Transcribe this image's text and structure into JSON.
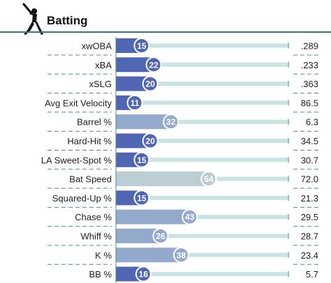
{
  "header": {
    "title": "Batting",
    "icon": "batter-silhouette-icon"
  },
  "colors": {
    "accent": "#2f7a84",
    "track": "#c9e3e3",
    "track_edge": "#8fc1c3",
    "gridline": "#3f8f99",
    "percentile_bar_low": "#5066b2",
    "percentile_bar_mid": "#93aacd",
    "percentile_bar_near_avg": "#b9cdd2",
    "badge_stroke": "#ffffff"
  },
  "chart_data": {
    "type": "bar",
    "orientation": "horizontal",
    "title": "Batting",
    "value_axis": {
      "label": "",
      "range": [
        0,
        100
      ],
      "unit": "percentile"
    },
    "categories": [
      "xwOBA",
      "xBA",
      "xSLG",
      "Avg Exit Velocity",
      "Barrel %",
      "Hard-Hit %",
      "LA Sweet-Spot %",
      "Bat Speed",
      "Squared-Up %",
      "Chase %",
      "Whiff %",
      "K %",
      "BB %"
    ],
    "rows": [
      {
        "label": "xwOBA",
        "percentile": 15,
        "stat": ".289"
      },
      {
        "label": "xBA",
        "percentile": 22,
        "stat": ".233"
      },
      {
        "label": "xSLG",
        "percentile": 20,
        "stat": ".363"
      },
      {
        "label": "Avg Exit Velocity",
        "percentile": 11,
        "stat": "86.5"
      },
      {
        "label": "Barrel %",
        "percentile": 32,
        "stat": "6.3"
      },
      {
        "label": "Hard-Hit %",
        "percentile": 20,
        "stat": "34.5"
      },
      {
        "label": "LA Sweet-Spot %",
        "percentile": 15,
        "stat": "30.7"
      },
      {
        "label": "Bat Speed",
        "percentile": 54,
        "stat": "72.0"
      },
      {
        "label": "Squared-Up %",
        "percentile": 15,
        "stat": "21.3"
      },
      {
        "label": "Chase %",
        "percentile": 43,
        "stat": "29.5"
      },
      {
        "label": "Whiff %",
        "percentile": 26,
        "stat": "28.7"
      },
      {
        "label": "K %",
        "percentile": 38,
        "stat": "23.4"
      },
      {
        "label": "BB %",
        "percentile": 16,
        "stat": "5.7"
      }
    ]
  }
}
